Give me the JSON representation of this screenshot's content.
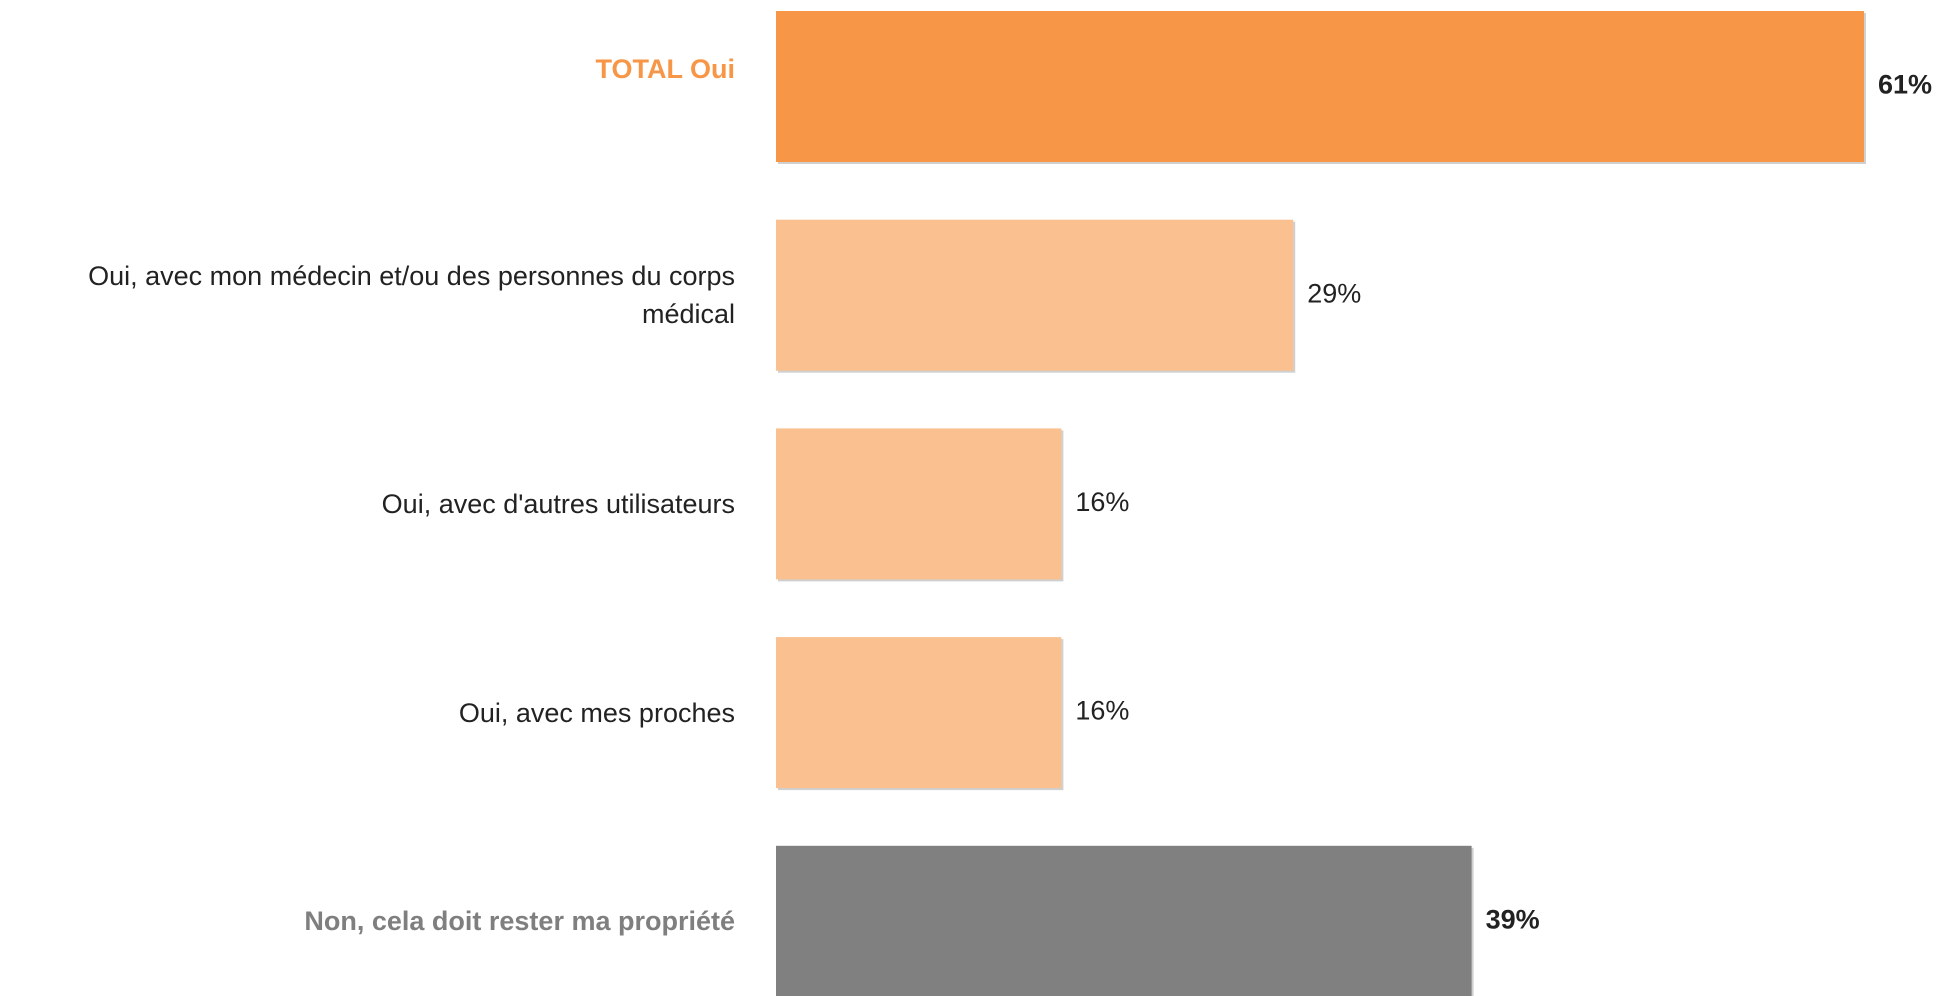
{
  "chart_data": {
    "type": "barh",
    "categories": [
      "TOTAL Oui",
      "Oui, avec mon médecin et/ou des personnes du corps médical",
      "Oui, avec d'autres utilisateurs",
      "Oui, avec mes proches",
      "Non, cela doit rester ma propriété"
    ],
    "values": [
      61,
      29,
      16,
      16,
      39
    ],
    "value_labels": [
      "61%",
      "29%",
      "16%",
      "16%",
      "39%"
    ],
    "colors": [
      "#f79646",
      "#fac090",
      "#fac090",
      "#fac090",
      "#808080"
    ],
    "label_colors": [
      "#f79646",
      "#222222",
      "#222222",
      "#222222",
      "#7f7f7f"
    ],
    "bold": [
      true,
      false,
      false,
      false,
      true
    ]
  }
}
